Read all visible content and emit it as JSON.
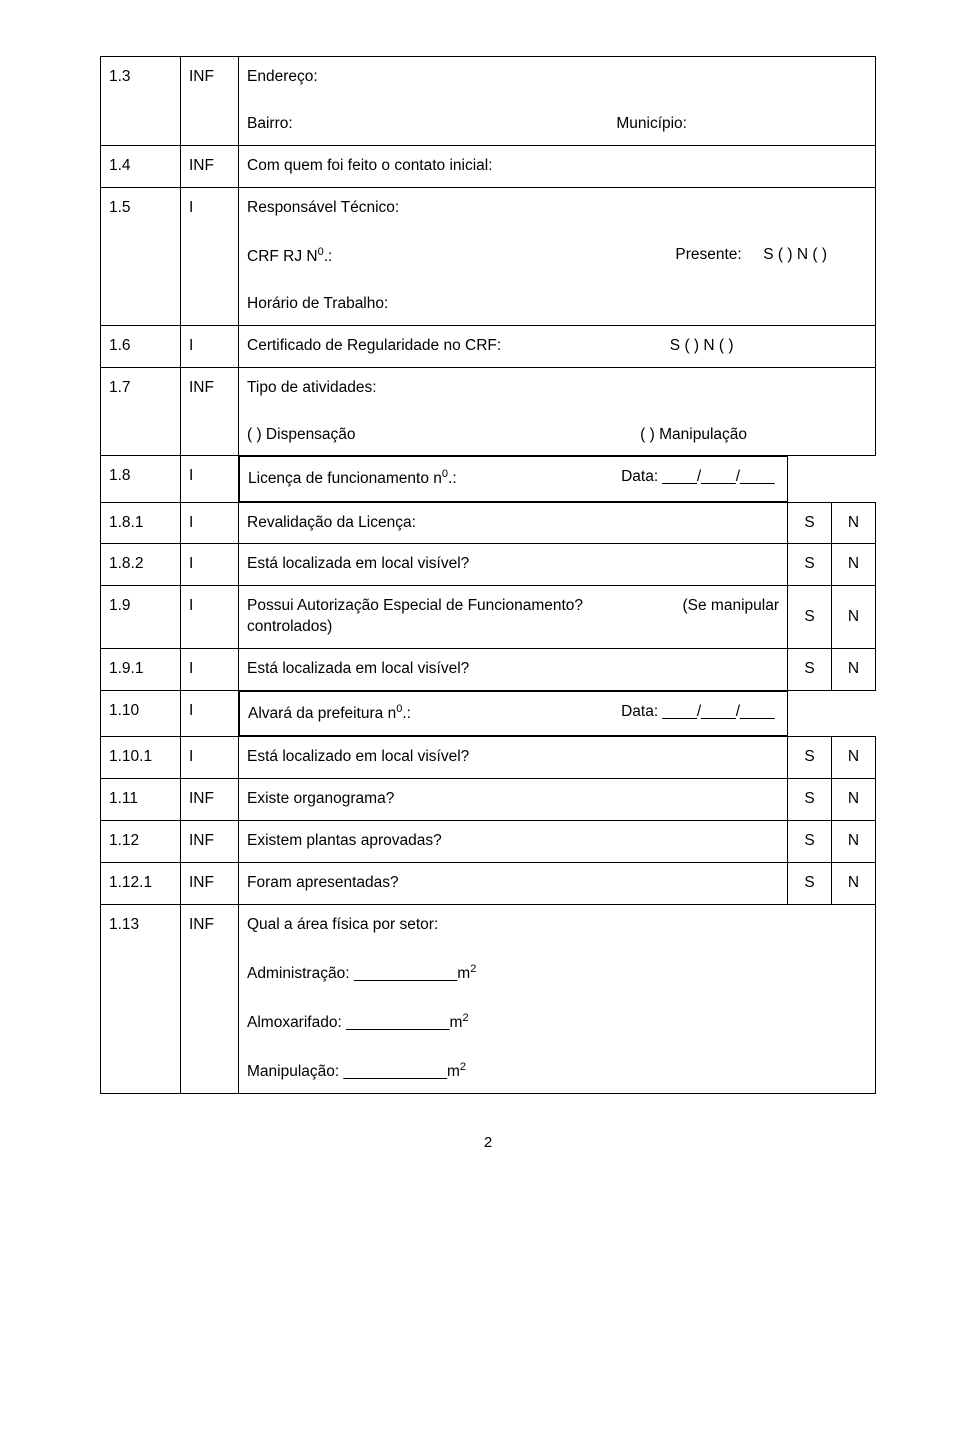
{
  "rows": {
    "r1_3": {
      "num": "1.3",
      "type": "INF",
      "lines": {
        "endereco_lbl": "Endereço:",
        "bairro_lbl": "Bairro:",
        "municipio_lbl": "Município:"
      }
    },
    "r1_4": {
      "num": "1.4",
      "type": "INF",
      "text": "Com quem foi feito o contato inicial:"
    },
    "r1_5": {
      "num": "1.5",
      "type": "I",
      "lines": {
        "resp_lbl": "Responsável Técnico:",
        "crf_lbl": "CRF RJ N",
        "crf_sup": "0",
        "crf_dot": ".:",
        "presente_lbl": "Presente:",
        "presente_opts": "S (   )     N  (   )",
        "horario_lbl": "Horário de Trabalho:"
      }
    },
    "r1_6": {
      "num": "1.6",
      "type": "I",
      "text_a": "Certificado de Regularidade no CRF:",
      "text_b": "S (   )     N  (   )"
    },
    "r1_7": {
      "num": "1.7",
      "type": "INF",
      "lines": {
        "tipo_lbl": "Tipo de atividades:",
        "disp": "(   )  Dispensação",
        "manip": "(   )  Manipulação"
      }
    },
    "r1_8": {
      "num": "1.8",
      "type": "I",
      "text_a": "Licença de funcionamento n",
      "sup": "0",
      "dot": ".:",
      "data_lbl": "Data: ____/____/____"
    },
    "r1_8_1": {
      "num": "1.8.1",
      "type": "I",
      "text": "Revalidação da Licença:",
      "s": "S",
      "n": "N"
    },
    "r1_8_2": {
      "num": "1.8.2",
      "type": "I",
      "text": "Está localizada em local visível?",
      "s": "S",
      "n": "N"
    },
    "r1_9": {
      "num": "1.9",
      "type": "I",
      "text_a": "Possui  Autorização  Especial  de  Funcionamento?",
      "text_b": "(Se  manipular",
      "text_c": "controlados)",
      "s": "S",
      "n": "N"
    },
    "r1_9_1": {
      "num": "1.9.1",
      "type": "I",
      "text": "Está localizada em local visível?",
      "s": "S",
      "n": "N"
    },
    "r1_10": {
      "num": "1.10",
      "type": "I",
      "text_a": "Alvará da prefeitura n",
      "sup": "0",
      "dot": ".:",
      "data_lbl": "Data: ____/____/____"
    },
    "r1_10_1": {
      "num": "1.10.1",
      "type": "I",
      "text": "Está localizado em local visível?",
      "s": "S",
      "n": "N"
    },
    "r1_11": {
      "num": "1.11",
      "type": "INF",
      "text": "Existe organograma?",
      "s": "S",
      "n": "N"
    },
    "r1_12": {
      "num": "1.12",
      "type": "INF",
      "text": "Existem plantas aprovadas?",
      "s": "S",
      "n": "N"
    },
    "r1_12_1": {
      "num": "1.12.1",
      "type": "INF",
      "text": "Foram apresentadas?",
      "s": "S",
      "n": "N"
    },
    "r1_13": {
      "num": "1.13",
      "type": "INF",
      "lines": {
        "qual_lbl": "Qual a área física por setor:",
        "admin_lbl": "Administração: ____________m",
        "almox_lbl": "Almoxarifado: ____________m",
        "manip_lbl": "Manipulação: ____________m",
        "sq": "2"
      }
    }
  },
  "pagenum": "2"
}
